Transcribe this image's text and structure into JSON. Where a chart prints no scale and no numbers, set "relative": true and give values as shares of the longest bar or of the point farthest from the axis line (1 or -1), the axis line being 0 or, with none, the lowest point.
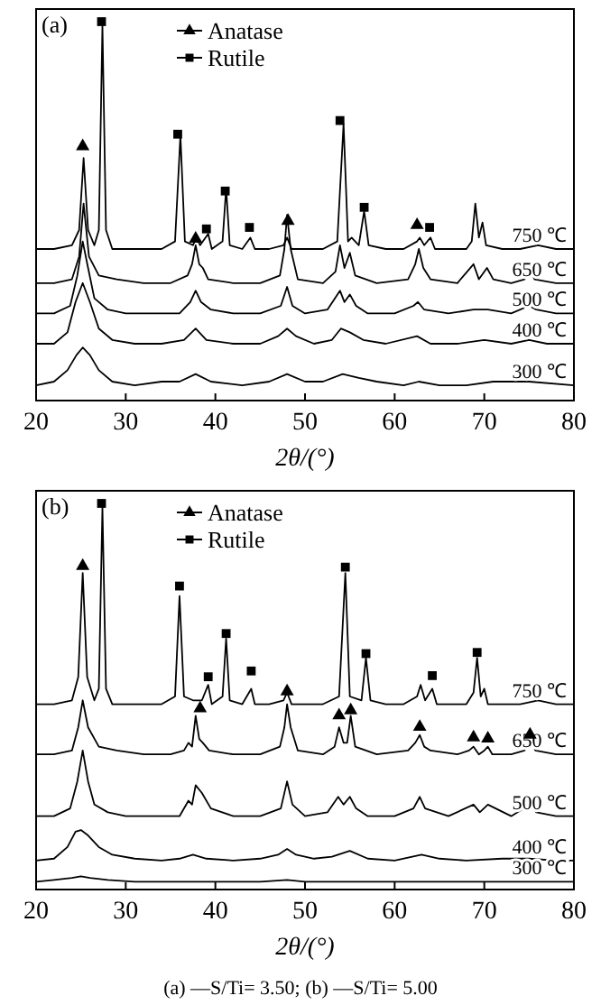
{
  "chart_data": [
    {
      "type": "line",
      "title": "(a)",
      "xlabel": "2θ/(°)",
      "relative": true,
      "xlim": [
        20,
        80
      ],
      "xticks": [
        20,
        30,
        40,
        50,
        60,
        70,
        80
      ],
      "legend": "top",
      "grid": false,
      "line_style": "solid",
      "series": [
        {
          "name": "750 ℃",
          "color": "#000000",
          "x": [
            20,
            22,
            24,
            24.8,
            25.3,
            25.8,
            26.5,
            27.0,
            27.4,
            27.8,
            28.5,
            30,
            32,
            34,
            35.5,
            36.1,
            36.6,
            37.5,
            37.9,
            38.3,
            39.2,
            39.6,
            40.8,
            41.2,
            41.6,
            43,
            43.9,
            44.4,
            46,
            47.6,
            48.0,
            48.5,
            50,
            52,
            53.6,
            54.3,
            54.8,
            55.2,
            56.0,
            56.6,
            57.1,
            59,
            61,
            62.5,
            62.8,
            63.3,
            64.0,
            64.5,
            66,
            68,
            68.6,
            69.0,
            69.4,
            69.8,
            70.2,
            72,
            74,
            76,
            78,
            80
          ],
          "values": [
            0.4,
            0.4,
            0.41,
            0.45,
            0.64,
            0.45,
            0.41,
            0.45,
            0.99,
            0.45,
            0.4,
            0.4,
            0.4,
            0.4,
            0.42,
            0.7,
            0.42,
            0.41,
            0.43,
            0.41,
            0.44,
            0.4,
            0.42,
            0.56,
            0.41,
            0.4,
            0.43,
            0.4,
            0.4,
            0.41,
            0.43,
            0.4,
            0.4,
            0.4,
            0.42,
            0.73,
            0.42,
            0.43,
            0.41,
            0.5,
            0.41,
            0.4,
            0.4,
            0.42,
            0.43,
            0.41,
            0.43,
            0.4,
            0.4,
            0.4,
            0.42,
            0.52,
            0.43,
            0.47,
            0.41,
            0.4,
            0.4,
            0.41,
            0.4,
            0.4
          ]
        },
        {
          "name": "650 ℃",
          "color": "#000000",
          "x": [
            20,
            22,
            24,
            24.8,
            25.3,
            25.9,
            27,
            29,
            32,
            35,
            36.9,
            37.4,
            37.8,
            38.2,
            38.6,
            39.2,
            42,
            45,
            47.2,
            47.7,
            48.0,
            48.4,
            49.2,
            52,
            53.4,
            53.9,
            54.4,
            55.0,
            55.6,
            58,
            61.5,
            62.3,
            62.7,
            63.2,
            64,
            67,
            68.8,
            69.4,
            70.3,
            71,
            73,
            74.5,
            75.0,
            75.6,
            78,
            80
          ],
          "values": [
            0.31,
            0.31,
            0.32,
            0.38,
            0.52,
            0.38,
            0.33,
            0.32,
            0.31,
            0.31,
            0.33,
            0.36,
            0.41,
            0.36,
            0.35,
            0.32,
            0.31,
            0.31,
            0.33,
            0.4,
            0.49,
            0.4,
            0.32,
            0.31,
            0.34,
            0.41,
            0.35,
            0.39,
            0.33,
            0.31,
            0.32,
            0.36,
            0.4,
            0.35,
            0.32,
            0.31,
            0.36,
            0.32,
            0.35,
            0.32,
            0.31,
            0.32,
            0.35,
            0.32,
            0.31,
            0.31
          ]
        },
        {
          "name": "500 ℃",
          "color": "#000000",
          "x": [
            20,
            22,
            23.8,
            24.6,
            25.2,
            25.8,
            26.5,
            28,
            30,
            33,
            36,
            37.2,
            37.8,
            38.4,
            39.5,
            42,
            45,
            47.3,
            48.0,
            48.6,
            50,
            52.5,
            53.9,
            54.4,
            55.0,
            55.7,
            57,
            60,
            62.1,
            62.6,
            63.3,
            66,
            68.8,
            70.4,
            73,
            75.0,
            75.8,
            78,
            80
          ],
          "values": [
            0.23,
            0.23,
            0.25,
            0.33,
            0.42,
            0.35,
            0.27,
            0.24,
            0.23,
            0.23,
            0.23,
            0.26,
            0.29,
            0.26,
            0.24,
            0.23,
            0.23,
            0.25,
            0.3,
            0.25,
            0.23,
            0.24,
            0.29,
            0.26,
            0.28,
            0.25,
            0.23,
            0.23,
            0.25,
            0.26,
            0.24,
            0.23,
            0.24,
            0.24,
            0.23,
            0.25,
            0.24,
            0.23,
            0.23
          ]
        },
        {
          "name": "400 ℃",
          "color": "#000000",
          "x": [
            20,
            22,
            23.5,
            24.4,
            25.2,
            26,
            27,
            28.5,
            31,
            34,
            36.5,
            37.8,
            39,
            42,
            45,
            47,
            48.0,
            49,
            51,
            53,
            54.0,
            55.0,
            56.5,
            59,
            62.5,
            64,
            67,
            70,
            73,
            75,
            77,
            80
          ],
          "values": [
            0.15,
            0.15,
            0.18,
            0.26,
            0.31,
            0.26,
            0.19,
            0.16,
            0.15,
            0.15,
            0.16,
            0.19,
            0.16,
            0.15,
            0.15,
            0.17,
            0.19,
            0.17,
            0.15,
            0.16,
            0.19,
            0.18,
            0.16,
            0.15,
            0.17,
            0.15,
            0.15,
            0.16,
            0.15,
            0.16,
            0.15,
            0.15
          ]
        },
        {
          "name": "300 ℃",
          "color": "#000000",
          "x": [
            20,
            22,
            23.5,
            24.5,
            25.2,
            26,
            27,
            28.5,
            31,
            34,
            36,
            37.8,
            39.5,
            43,
            46,
            48,
            50,
            52,
            54.2,
            56,
            58,
            61,
            62.7,
            65,
            68,
            71,
            75,
            80
          ],
          "values": [
            0.04,
            0.05,
            0.08,
            0.12,
            0.14,
            0.12,
            0.08,
            0.05,
            0.04,
            0.05,
            0.05,
            0.07,
            0.05,
            0.04,
            0.05,
            0.07,
            0.05,
            0.05,
            0.07,
            0.06,
            0.05,
            0.04,
            0.05,
            0.04,
            0.04,
            0.05,
            0.05,
            0.04
          ]
        },
        {
          "name": "Anatase",
          "type": "scatter",
          "marker": "triangle",
          "color": "#000000",
          "x": [
            25.2,
            37.8,
            48.1,
            62.5
          ],
          "values": [
            0.671,
            0.427,
            0.474,
            0.463
          ]
        },
        {
          "name": "Rutile",
          "type": "scatter",
          "marker": "square",
          "color": "#000000",
          "x": [
            27.3,
            35.8,
            39.0,
            41.1,
            43.8,
            53.9,
            56.6,
            63.9
          ],
          "values": [
            1.0,
            0.703,
            0.453,
            0.553,
            0.457,
            0.739,
            0.51,
            0.457
          ]
        }
      ]
    },
    {
      "type": "line",
      "title": "(b)",
      "xlabel": "2θ/(°)",
      "relative": true,
      "xlim": [
        20,
        80
      ],
      "xticks": [
        20,
        30,
        40,
        50,
        60,
        70,
        80
      ],
      "legend": "top",
      "grid": false,
      "line_style": "solid",
      "annotations": [
        "(a) —S/Ti= 3.50; (b) —S/Ti= 5.00"
      ],
      "series": [
        {
          "name": "750 ℃",
          "color": "#000000",
          "x": [
            20,
            22,
            24,
            24.7,
            25.2,
            25.7,
            26.5,
            27.0,
            27.4,
            27.8,
            28.5,
            30,
            32,
            34,
            35.5,
            36.0,
            36.5,
            37.5,
            38.5,
            39.2,
            39.6,
            40.8,
            41.2,
            41.6,
            43,
            44.0,
            44.4,
            46,
            47.6,
            48.0,
            48.5,
            50,
            52,
            53.8,
            54.5,
            55.0,
            56.3,
            56.8,
            57.3,
            59,
            61,
            62.5,
            62.9,
            63.4,
            64.2,
            64.7,
            66,
            68,
            68.8,
            69.2,
            69.6,
            70.0,
            70.4,
            72,
            74,
            76,
            78,
            80
          ],
          "values": [
            0.48,
            0.48,
            0.49,
            0.55,
            0.82,
            0.55,
            0.49,
            0.52,
            0.99,
            0.52,
            0.48,
            0.48,
            0.48,
            0.48,
            0.5,
            0.76,
            0.5,
            0.49,
            0.49,
            0.53,
            0.48,
            0.5,
            0.65,
            0.49,
            0.48,
            0.52,
            0.48,
            0.48,
            0.49,
            0.51,
            0.48,
            0.48,
            0.48,
            0.5,
            0.82,
            0.5,
            0.49,
            0.6,
            0.49,
            0.48,
            0.48,
            0.5,
            0.53,
            0.49,
            0.52,
            0.48,
            0.48,
            0.48,
            0.51,
            0.6,
            0.5,
            0.52,
            0.48,
            0.48,
            0.48,
            0.49,
            0.48,
            0.48
          ]
        },
        {
          "name": "650 ℃",
          "color": "#000000",
          "x": [
            20,
            22,
            24,
            24.7,
            25.2,
            25.8,
            27,
            29,
            32,
            35,
            36.5,
            37.0,
            37.4,
            37.8,
            38.2,
            38.6,
            39.3,
            42,
            45,
            47.2,
            47.7,
            48.0,
            48.4,
            49.2,
            52,
            53.3,
            53.8,
            54.3,
            54.7,
            55.1,
            55.6,
            58,
            61.5,
            62.3,
            62.8,
            63.3,
            64,
            67,
            68.3,
            68.8,
            69.4,
            70.0,
            70.4,
            70.9,
            73,
            74.5,
            75.1,
            75.7,
            78,
            80
          ],
          "values": [
            0.35,
            0.35,
            0.36,
            0.42,
            0.49,
            0.42,
            0.37,
            0.36,
            0.35,
            0.35,
            0.36,
            0.38,
            0.37,
            0.45,
            0.39,
            0.38,
            0.36,
            0.35,
            0.35,
            0.37,
            0.42,
            0.48,
            0.42,
            0.36,
            0.35,
            0.37,
            0.42,
            0.38,
            0.38,
            0.45,
            0.37,
            0.35,
            0.36,
            0.38,
            0.4,
            0.37,
            0.36,
            0.35,
            0.36,
            0.37,
            0.35,
            0.36,
            0.37,
            0.35,
            0.35,
            0.36,
            0.39,
            0.36,
            0.35,
            0.35
          ]
        },
        {
          "name": "500 ℃",
          "color": "#000000",
          "x": [
            20,
            22,
            23.8,
            24.6,
            25.2,
            25.8,
            26.5,
            28,
            30,
            33,
            36,
            37.0,
            37.4,
            37.8,
            38.5,
            39.5,
            42,
            45,
            47.3,
            48.0,
            48.6,
            50,
            52.5,
            53.7,
            54.3,
            55.0,
            55.7,
            57,
            60,
            62.1,
            62.8,
            63.4,
            66,
            68.8,
            69.5,
            70.4,
            73,
            75.1,
            75.8,
            78,
            80
          ],
          "values": [
            0.19,
            0.19,
            0.21,
            0.28,
            0.36,
            0.28,
            0.22,
            0.2,
            0.19,
            0.19,
            0.19,
            0.23,
            0.22,
            0.27,
            0.25,
            0.21,
            0.19,
            0.19,
            0.21,
            0.28,
            0.22,
            0.19,
            0.2,
            0.24,
            0.22,
            0.24,
            0.21,
            0.19,
            0.19,
            0.21,
            0.24,
            0.21,
            0.19,
            0.22,
            0.2,
            0.22,
            0.19,
            0.22,
            0.2,
            0.19,
            0.19
          ]
        },
        {
          "name": "400 ℃",
          "color": "#000000",
          "x": [
            20,
            22,
            23.5,
            24.4,
            25.0,
            25.8,
            27,
            28.5,
            31,
            34,
            36,
            37.5,
            39,
            42,
            45,
            47,
            48.0,
            49,
            51,
            53,
            55.0,
            57,
            60,
            63,
            65,
            68,
            72,
            75,
            78,
            80
          ],
          "values": [
            0.075,
            0.08,
            0.11,
            0.15,
            0.154,
            0.14,
            0.11,
            0.09,
            0.08,
            0.075,
            0.08,
            0.09,
            0.08,
            0.075,
            0.08,
            0.09,
            0.105,
            0.09,
            0.08,
            0.085,
            0.1,
            0.08,
            0.075,
            0.09,
            0.08,
            0.075,
            0.08,
            0.08,
            0.075,
            0.075
          ]
        },
        {
          "name": "300 ℃",
          "color": "#000000",
          "x": [
            20,
            22,
            24,
            25.0,
            26,
            28,
            31,
            35,
            40,
            45,
            48,
            50,
            55,
            60,
            65,
            70,
            75,
            80
          ],
          "values": [
            0.02,
            0.025,
            0.03,
            0.034,
            0.03,
            0.025,
            0.02,
            0.02,
            0.02,
            0.02,
            0.025,
            0.02,
            0.02,
            0.02,
            0.02,
            0.02,
            0.02,
            0.02
          ]
        },
        {
          "name": "Anatase",
          "type": "scatter",
          "marker": "triangle",
          "color": "#000000",
          "x": [
            25.2,
            38.3,
            48.0,
            53.8,
            55.1,
            62.8,
            68.8,
            70.4,
            75.1
          ],
          "values": [
            0.838,
            0.469,
            0.513,
            0.451,
            0.464,
            0.421,
            0.394,
            0.391,
            0.401
          ]
        },
        {
          "name": "Rutile",
          "type": "scatter",
          "marker": "square",
          "color": "#000000",
          "x": [
            27.3,
            36.0,
            39.2,
            41.2,
            44.0,
            54.5,
            56.8,
            64.2,
            69.2
          ],
          "values": [
            1.0,
            0.786,
            0.551,
            0.663,
            0.566,
            0.835,
            0.611,
            0.554,
            0.614
          ]
        }
      ]
    }
  ]
}
